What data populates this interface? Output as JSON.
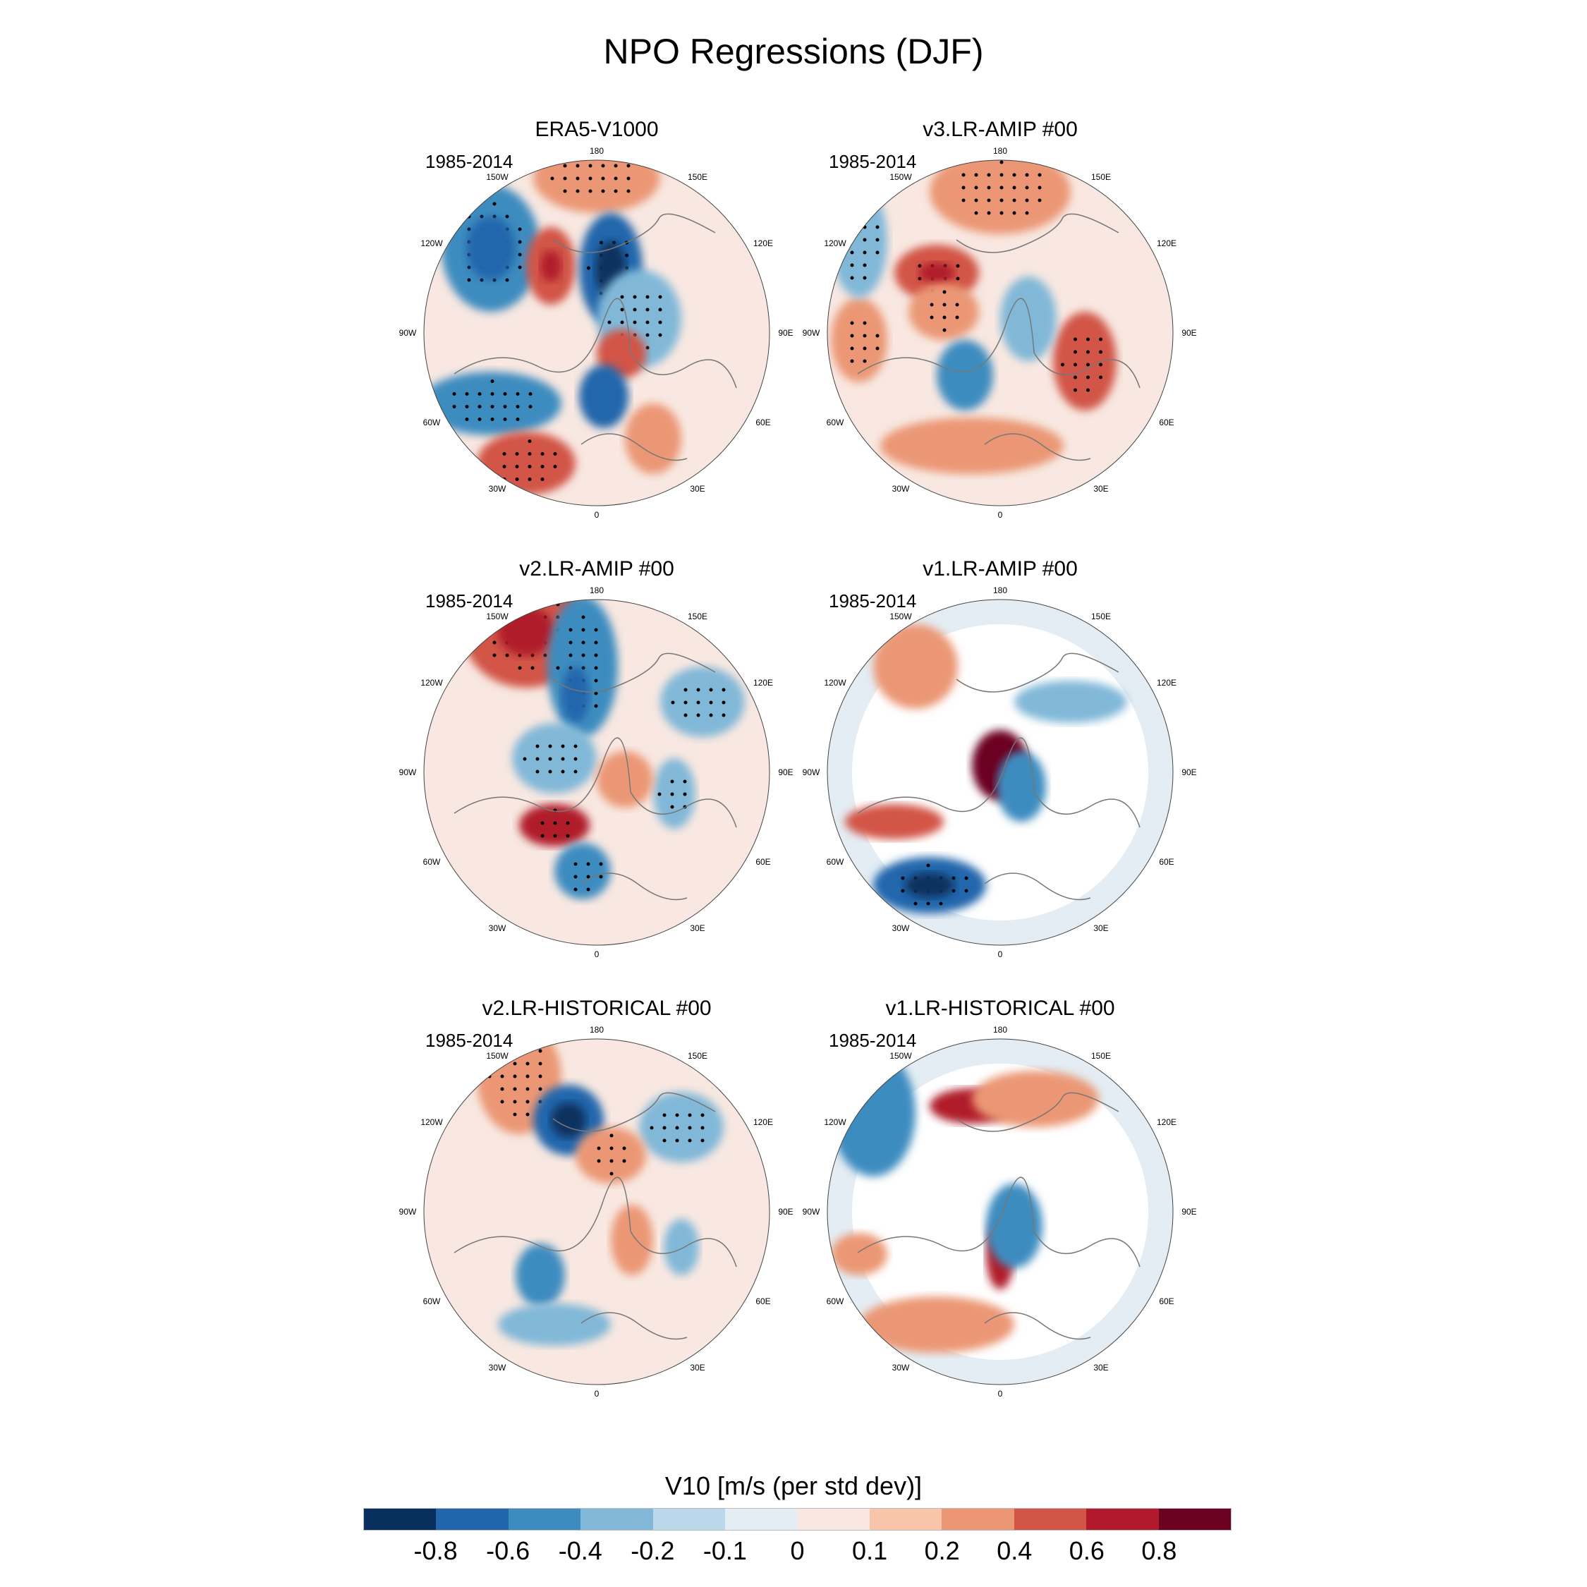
{
  "title": "NPO Regressions (DJF)",
  "chart_data": {
    "type": "heatmap",
    "projection": "north polar stereographic",
    "season": "DJF",
    "panels": [
      {
        "title": "ERA5-V1000",
        "period": "1985-2014"
      },
      {
        "title": "v3.LR-AMIP  #00",
        "period": "1985-2014"
      },
      {
        "title": "v2.LR-AMIP  #00",
        "period": "1985-2014"
      },
      {
        "title": "v1.LR-AMIP  #00",
        "period": "1985-2014"
      },
      {
        "title": "v2.LR-HISTORICAL  #00",
        "period": "1985-2014"
      },
      {
        "title": "v1.LR-HISTORICAL  #00",
        "period": "1985-2014"
      }
    ],
    "lon_labels": [
      "180",
      "150E",
      "120E",
      "90E",
      "60E",
      "30E",
      "0",
      "30W",
      "60W",
      "90W",
      "120W",
      "150W"
    ],
    "colorbar": {
      "title": "V10 [m/s (per std dev)]",
      "levels": [
        "-0.8",
        "-0.6",
        "-0.4",
        "-0.2",
        "-0.1",
        "0",
        "0.1",
        "0.2",
        "0.4",
        "0.6",
        "0.8"
      ],
      "colors": [
        "#08305e",
        "#2166ac",
        "#3d8cc0",
        "#81b8d8",
        "#bad8e9",
        "#e4edf3",
        "#f8e8e1",
        "#f8c5ab",
        "#eb9775",
        "#d25547",
        "#b01a2c",
        "#6c0021"
      ]
    }
  }
}
